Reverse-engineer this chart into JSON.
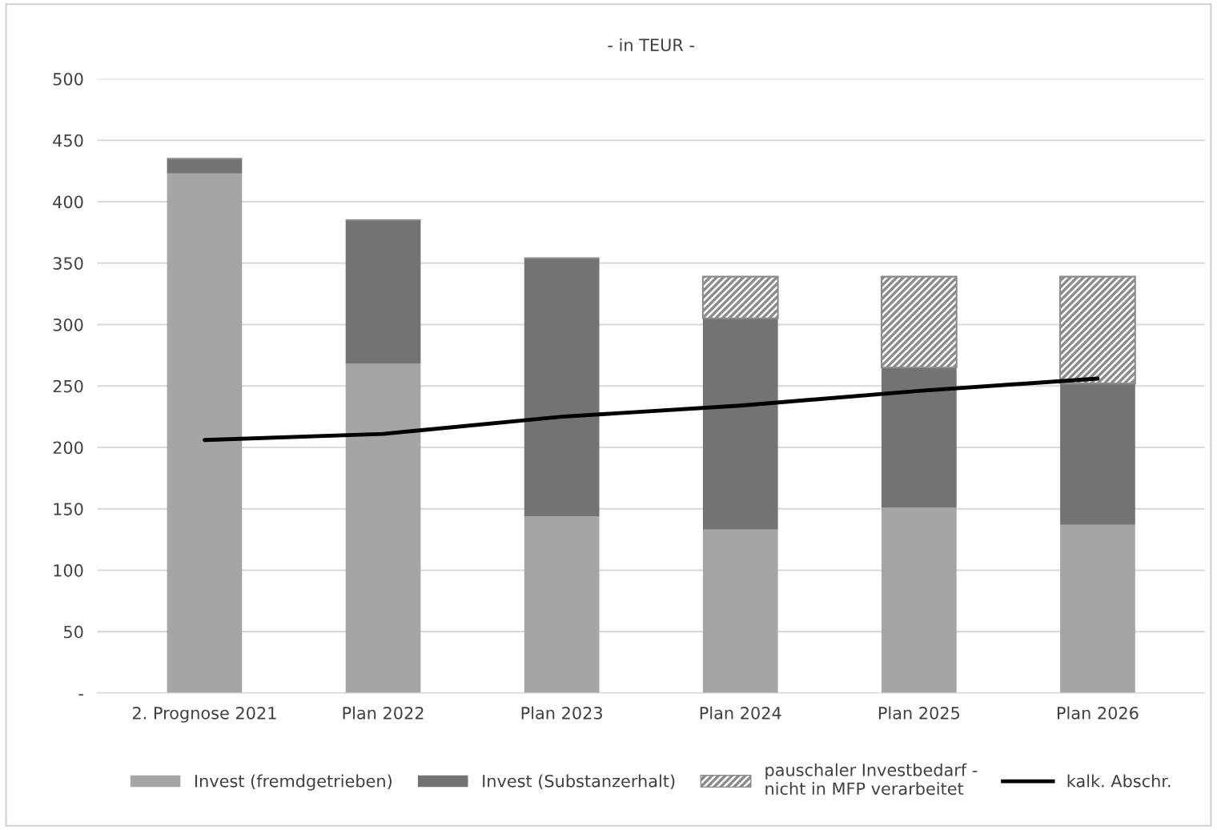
{
  "chart_data": {
    "type": "bar",
    "stacked": true,
    "title": "- in TEUR -",
    "categories": [
      "2. Prognose 2021",
      "Plan 2022",
      "Plan 2023",
      "Plan 2024",
      "Plan 2025",
      "Plan 2026"
    ],
    "series": [
      {
        "name": "Invest (fremdgetrieben)",
        "color": "#a5a5a5",
        "values": [
          423,
          268,
          144,
          133,
          151,
          137
        ]
      },
      {
        "name": "Invest (Substanzerhalt)",
        "color": "#737373",
        "values": [
          12,
          117,
          210,
          172,
          114,
          115
        ]
      },
      {
        "name": "pauschaler Investbedarf -\nnicht in MFP verarbeitet",
        "color": "#8c8c8c",
        "values": [
          null,
          null,
          null,
          34,
          74,
          87
        ]
      },
      {
        "name": "kalk. Abschr.",
        "type": "line",
        "color": "#000000",
        "values": [
          206,
          211,
          225,
          234,
          246,
          256
        ]
      }
    ],
    "ylim": [
      0,
      500
    ],
    "yticks": [
      {
        "value": 0,
        "label": "-"
      },
      50,
      100,
      150,
      200,
      250,
      300,
      350,
      400,
      450,
      500
    ],
    "grid": "y",
    "legend": "bottom",
    "marker": "none",
    "line_style": "solid"
  }
}
